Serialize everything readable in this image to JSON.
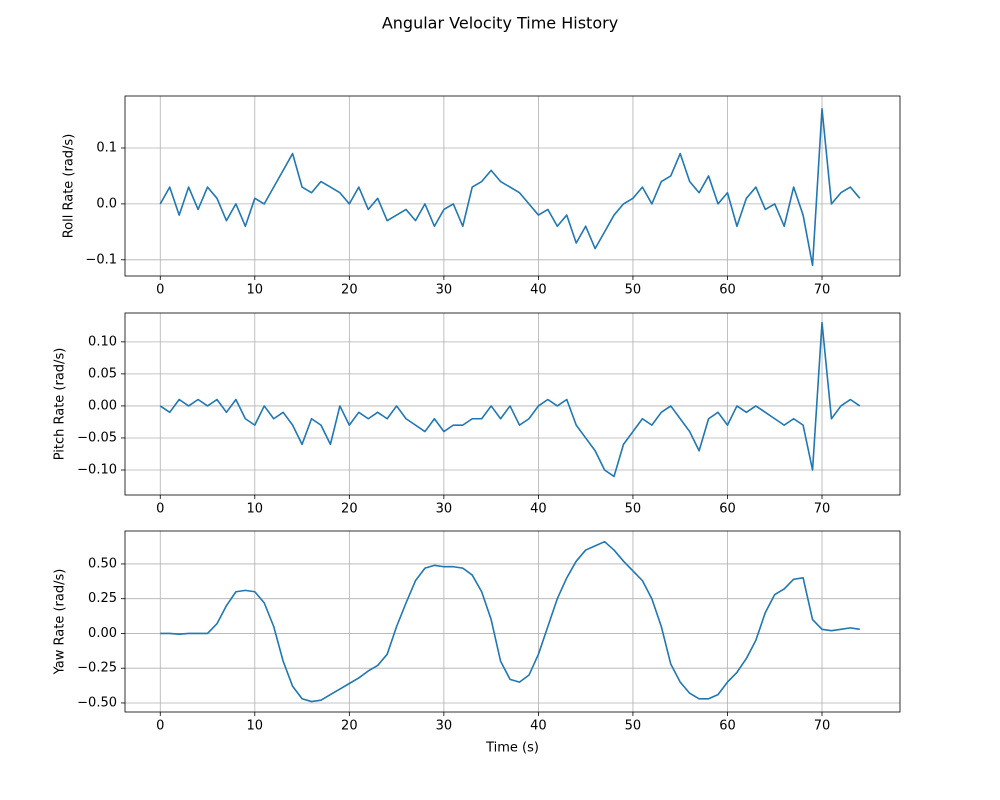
{
  "title": "Angular Velocity Time History",
  "chart_data": [
    {
      "type": "line",
      "ylabel": "Roll Rate (rad/s)",
      "color": "#1f77b4",
      "grid": true,
      "x": [
        0,
        1,
        2,
        3,
        4,
        5,
        6,
        7,
        8,
        9,
        10,
        11,
        12,
        13,
        14,
        15,
        16,
        17,
        18,
        19,
        20,
        21,
        22,
        23,
        24,
        25,
        26,
        27,
        28,
        29,
        30,
        31,
        32,
        33,
        34,
        35,
        36,
        37,
        38,
        39,
        40,
        41,
        42,
        43,
        44,
        45,
        46,
        47,
        48,
        49,
        50,
        51,
        52,
        53,
        54,
        55,
        56,
        57,
        58,
        59,
        60,
        61,
        62,
        63,
        64,
        65,
        66,
        67,
        68,
        69,
        70,
        71,
        72,
        73,
        74
      ],
      "values": [
        0.0,
        0.03,
        -0.02,
        0.03,
        -0.01,
        0.03,
        0.01,
        -0.03,
        0.0,
        -0.04,
        0.01,
        0.0,
        0.03,
        0.06,
        0.09,
        0.03,
        0.02,
        0.04,
        0.03,
        0.02,
        0.0,
        0.03,
        -0.01,
        0.01,
        -0.03,
        -0.02,
        -0.01,
        -0.03,
        0.0,
        -0.04,
        -0.01,
        0.0,
        -0.04,
        0.03,
        0.04,
        0.06,
        0.04,
        0.03,
        0.02,
        0.0,
        -0.02,
        -0.01,
        -0.04,
        -0.02,
        -0.07,
        -0.04,
        -0.08,
        -0.05,
        -0.02,
        0.0,
        0.01,
        0.03,
        0.0,
        0.04,
        0.05,
        0.09,
        0.04,
        0.02,
        0.05,
        0.0,
        0.02,
        -0.04,
        0.01,
        0.03,
        -0.01,
        0.0,
        -0.04,
        0.03,
        -0.02,
        -0.11,
        0.17,
        0.0,
        0.02,
        0.03,
        0.01
      ],
      "xlim": [
        -3.73,
        78.25
      ],
      "xticks": [
        0,
        10,
        20,
        30,
        40,
        50,
        60,
        70
      ],
      "ylim": [
        -0.129,
        0.193
      ],
      "yticks": [
        {
          "value": -0.1,
          "label": "−0.1"
        },
        {
          "value": 0.0,
          "label": "0.0"
        },
        {
          "value": 0.1,
          "label": "0.1"
        }
      ]
    },
    {
      "type": "line",
      "ylabel": "Pitch Rate (rad/s)",
      "color": "#1f77b4",
      "grid": true,
      "x": [
        0,
        1,
        2,
        3,
        4,
        5,
        6,
        7,
        8,
        9,
        10,
        11,
        12,
        13,
        14,
        15,
        16,
        17,
        18,
        19,
        20,
        21,
        22,
        23,
        24,
        25,
        26,
        27,
        28,
        29,
        30,
        31,
        32,
        33,
        34,
        35,
        36,
        37,
        38,
        39,
        40,
        41,
        42,
        43,
        44,
        45,
        46,
        47,
        48,
        49,
        50,
        51,
        52,
        53,
        54,
        55,
        56,
        57,
        58,
        59,
        60,
        61,
        62,
        63,
        64,
        65,
        66,
        67,
        68,
        69,
        70,
        71,
        72,
        73,
        74
      ],
      "values": [
        0.0,
        -0.01,
        0.01,
        0.0,
        0.01,
        0.0,
        0.01,
        -0.01,
        0.01,
        -0.02,
        -0.03,
        0.0,
        -0.02,
        -0.01,
        -0.03,
        -0.06,
        -0.02,
        -0.03,
        -0.06,
        0.0,
        -0.03,
        -0.01,
        -0.02,
        -0.01,
        -0.02,
        0.0,
        -0.02,
        -0.03,
        -0.04,
        -0.02,
        -0.04,
        -0.03,
        -0.03,
        -0.02,
        -0.02,
        0.0,
        -0.02,
        0.0,
        -0.03,
        -0.02,
        0.0,
        0.01,
        0.0,
        0.01,
        -0.03,
        -0.05,
        -0.07,
        -0.1,
        -0.11,
        -0.06,
        -0.04,
        -0.02,
        -0.03,
        -0.01,
        0.0,
        -0.02,
        -0.04,
        -0.07,
        -0.02,
        -0.01,
        -0.03,
        0.0,
        -0.01,
        0.0,
        -0.01,
        -0.02,
        -0.03,
        -0.02,
        -0.03,
        -0.1,
        0.13,
        -0.02,
        0.0,
        0.01,
        0.0
      ],
      "xlim": [
        -3.73,
        78.25
      ],
      "xticks": [
        0,
        10,
        20,
        30,
        40,
        50,
        60,
        70
      ],
      "ylim": [
        -0.139,
        0.145
      ],
      "yticks": [
        {
          "value": -0.1,
          "label": "−0.10"
        },
        {
          "value": -0.05,
          "label": "−0.05"
        },
        {
          "value": 0.0,
          "label": "0.00"
        },
        {
          "value": 0.05,
          "label": "0.05"
        },
        {
          "value": 0.1,
          "label": "0.10"
        }
      ]
    },
    {
      "type": "line",
      "ylabel": "Yaw Rate (rad/s)",
      "xlabel": "Time (s)",
      "color": "#1f77b4",
      "grid": true,
      "x": [
        0,
        1,
        2,
        3,
        4,
        5,
        6,
        7,
        8,
        9,
        10,
        11,
        12,
        13,
        14,
        15,
        16,
        17,
        18,
        19,
        20,
        21,
        22,
        23,
        24,
        25,
        26,
        27,
        28,
        29,
        30,
        31,
        32,
        33,
        34,
        35,
        36,
        37,
        38,
        39,
        40,
        41,
        42,
        43,
        44,
        45,
        46,
        47,
        48,
        49,
        50,
        51,
        52,
        53,
        54,
        55,
        56,
        57,
        58,
        59,
        60,
        61,
        62,
        63,
        64,
        65,
        66,
        67,
        68,
        69,
        70,
        71,
        72,
        73,
        74
      ],
      "values": [
        0.0,
        0.0,
        -0.005,
        0.0,
        0.0,
        0.0,
        0.07,
        0.2,
        0.3,
        0.31,
        0.3,
        0.22,
        0.05,
        -0.2,
        -0.38,
        -0.47,
        -0.49,
        -0.48,
        -0.44,
        -0.4,
        -0.36,
        -0.32,
        -0.27,
        -0.23,
        -0.15,
        0.05,
        0.22,
        0.38,
        0.47,
        0.49,
        0.48,
        0.48,
        0.47,
        0.42,
        0.3,
        0.1,
        -0.2,
        -0.33,
        -0.35,
        -0.3,
        -0.15,
        0.05,
        0.25,
        0.4,
        0.52,
        0.6,
        0.63,
        0.66,
        0.6,
        0.52,
        0.45,
        0.38,
        0.25,
        0.05,
        -0.22,
        -0.35,
        -0.43,
        -0.47,
        -0.47,
        -0.44,
        -0.35,
        -0.28,
        -0.18,
        -0.05,
        0.15,
        0.28,
        0.32,
        0.39,
        0.4,
        0.1,
        0.03,
        0.02,
        0.03,
        0.04,
        0.03
      ],
      "xlim": [
        -3.73,
        78.25
      ],
      "xticks": [
        0,
        10,
        20,
        30,
        40,
        50,
        60,
        70
      ],
      "ylim": [
        -0.565,
        0.737
      ],
      "yticks": [
        {
          "value": -0.5,
          "label": "−0.50"
        },
        {
          "value": -0.25,
          "label": "−0.25"
        },
        {
          "value": 0.0,
          "label": "0.00"
        },
        {
          "value": 0.25,
          "label": "0.25"
        },
        {
          "value": 0.5,
          "label": "0.50"
        }
      ]
    }
  ]
}
